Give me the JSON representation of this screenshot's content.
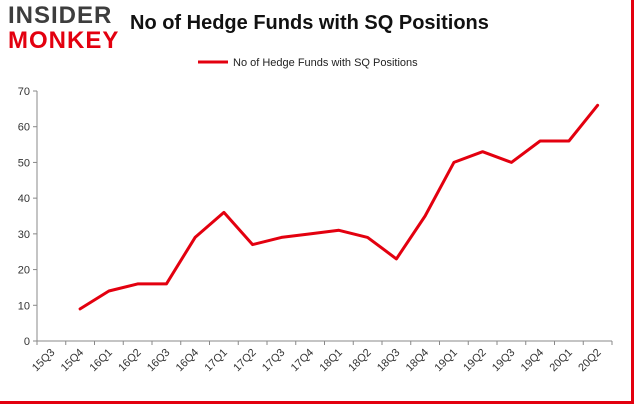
{
  "logo": {
    "line1": "INSIDER",
    "line2": "MONKEY"
  },
  "chart_data": {
    "type": "line",
    "title": "No of Hedge Funds with SQ Positions",
    "xlabel": "",
    "ylabel": "",
    "categories": [
      "15Q3",
      "15Q4",
      "16Q1",
      "16Q2",
      "16Q3",
      "16Q4",
      "17Q1",
      "17Q2",
      "17Q3",
      "17Q4",
      "18Q1",
      "18Q2",
      "18Q3",
      "18Q4",
      "19Q1",
      "19Q2",
      "19Q3",
      "19Q4",
      "20Q1",
      "20Q2"
    ],
    "series": [
      {
        "name": "No of Hedge Funds with SQ Positions",
        "values": [
          null,
          9,
          14,
          16,
          16,
          29,
          36,
          27,
          29,
          30,
          31,
          29,
          23,
          35,
          50,
          53,
          50,
          56,
          56,
          66
        ]
      }
    ],
    "ylim": [
      0,
      70
    ],
    "yticks": [
      0,
      10,
      20,
      30,
      40,
      50,
      60,
      70
    ],
    "grid": false,
    "legend": "top-center",
    "colors": {
      "line": "#e3000f",
      "axis": "#888888",
      "brand_red": "#e3000f",
      "brand_gray": "#3d3d3d"
    }
  }
}
